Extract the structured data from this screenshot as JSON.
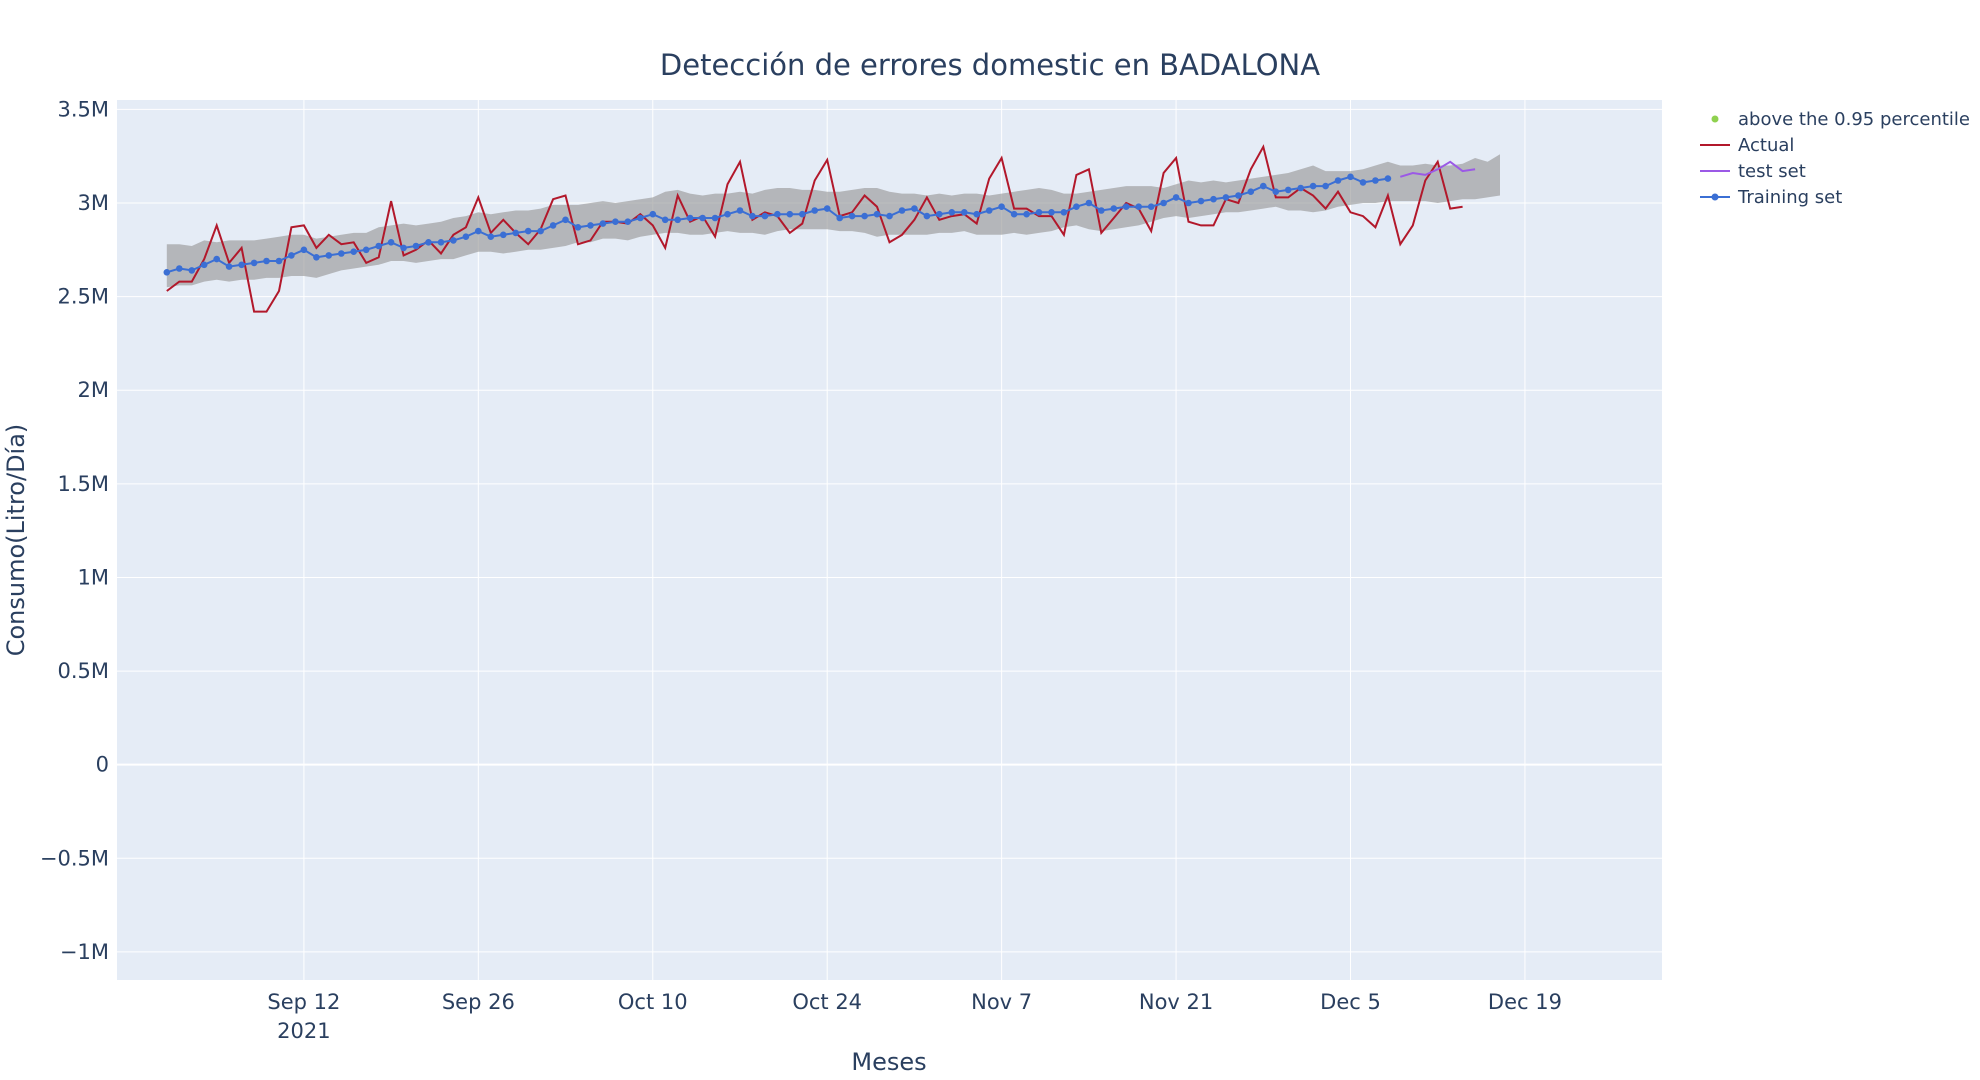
{
  "chart_data": {
    "type": "line",
    "title": "Detección de errores domestic en BADALONA",
    "xlabel": "Meses",
    "ylabel": "Consumo(Litro/Día)",
    "x_start": "2021-09-01",
    "x_range": [
      "2021-08-28",
      "2021-12-30"
    ],
    "ylim": [
      -1150000,
      3550000
    ],
    "x_ticks": [
      {
        "date": "2021-09-12",
        "label": "Sep 12",
        "sublabel": "2021"
      },
      {
        "date": "2021-09-26",
        "label": "Sep 26",
        "sublabel": ""
      },
      {
        "date": "2021-10-10",
        "label": "Oct 10",
        "sublabel": ""
      },
      {
        "date": "2021-10-24",
        "label": "Oct 24",
        "sublabel": ""
      },
      {
        "date": "2021-11-07",
        "label": "Nov 7",
        "sublabel": ""
      },
      {
        "date": "2021-11-21",
        "label": "Nov 21",
        "sublabel": ""
      },
      {
        "date": "2021-12-05",
        "label": "Dec 5",
        "sublabel": ""
      },
      {
        "date": "2021-12-19",
        "label": "Dec 19",
        "sublabel": ""
      }
    ],
    "y_ticks": [
      {
        "value": 3500000,
        "label": "3.5M"
      },
      {
        "value": 3000000,
        "label": "3M"
      },
      {
        "value": 2500000,
        "label": "2.5M"
      },
      {
        "value": 2000000,
        "label": "2M"
      },
      {
        "value": 1500000,
        "label": "1.5M"
      },
      {
        "value": 1000000,
        "label": "1M"
      },
      {
        "value": 500000,
        "label": "0.5M"
      },
      {
        "value": 0,
        "label": "0"
      },
      {
        "value": -500000,
        "label": "−0.5M"
      },
      {
        "value": -1000000,
        "label": "−1M"
      }
    ],
    "legend_position": "top-right",
    "grid": true,
    "colors": {
      "plot_bg": "#e5ecf6",
      "grid": "#ffffff",
      "band": "#9a9a9a",
      "actual": "#b2182b",
      "test": "#9b59e6",
      "training": "#3b6fd4",
      "outlier": "#8fd14f",
      "text": "#2a3f5f"
    },
    "legend": [
      {
        "key": "outlier",
        "label": "above the 0.95 percentile",
        "style": "marker"
      },
      {
        "key": "actual",
        "label": "Actual",
        "style": "line"
      },
      {
        "key": "test",
        "label": "test set",
        "style": "line"
      },
      {
        "key": "training",
        "label": "Training set",
        "style": "line-marker"
      }
    ],
    "band_upper": [
      2780000,
      2780000,
      2770000,
      2800000,
      2790000,
      2800000,
      2800000,
      2800000,
      2810000,
      2820000,
      2830000,
      2830000,
      2810000,
      2820000,
      2830000,
      2840000,
      2840000,
      2870000,
      2880000,
      2890000,
      2880000,
      2890000,
      2900000,
      2920000,
      2930000,
      2950000,
      2940000,
      2950000,
      2960000,
      2960000,
      2970000,
      2990000,
      2990000,
      2990000,
      3000000,
      3010000,
      3000000,
      3010000,
      3020000,
      3030000,
      3060000,
      3070000,
      3050000,
      3040000,
      3050000,
      3050000,
      3060000,
      3050000,
      3070000,
      3080000,
      3080000,
      3070000,
      3070000,
      3060000,
      3060000,
      3070000,
      3080000,
      3080000,
      3060000,
      3050000,
      3050000,
      3040000,
      3050000,
      3040000,
      3050000,
      3050000,
      3040000,
      3050000,
      3060000,
      3070000,
      3080000,
      3070000,
      3050000,
      3050000,
      3060000,
      3070000,
      3080000,
      3090000,
      3090000,
      3090000,
      3080000,
      3100000,
      3120000,
      3110000,
      3120000,
      3110000,
      3120000,
      3130000,
      3140000,
      3150000,
      3160000,
      3180000,
      3200000,
      3170000,
      3170000,
      3170000,
      3180000,
      3200000,
      3220000,
      3200000,
      3200000,
      3210000,
      3200000,
      3200000,
      3210000,
      3240000,
      3220000,
      3260000
    ],
    "band_lower": [
      2550000,
      2560000,
      2560000,
      2580000,
      2590000,
      2580000,
      2590000,
      2590000,
      2600000,
      2600000,
      2610000,
      2610000,
      2600000,
      2620000,
      2640000,
      2650000,
      2660000,
      2670000,
      2690000,
      2690000,
      2680000,
      2690000,
      2700000,
      2700000,
      2720000,
      2740000,
      2740000,
      2730000,
      2740000,
      2750000,
      2750000,
      2760000,
      2770000,
      2790000,
      2790000,
      2810000,
      2810000,
      2800000,
      2820000,
      2830000,
      2840000,
      2840000,
      2830000,
      2830000,
      2840000,
      2850000,
      2840000,
      2840000,
      2830000,
      2850000,
      2860000,
      2860000,
      2860000,
      2860000,
      2850000,
      2850000,
      2840000,
      2820000,
      2830000,
      2830000,
      2830000,
      2830000,
      2840000,
      2840000,
      2850000,
      2830000,
      2830000,
      2830000,
      2840000,
      2830000,
      2840000,
      2850000,
      2870000,
      2880000,
      2860000,
      2850000,
      2860000,
      2870000,
      2880000,
      2900000,
      2920000,
      2930000,
      2920000,
      2930000,
      2940000,
      2950000,
      2950000,
      2960000,
      2970000,
      2980000,
      2960000,
      2960000,
      2950000,
      2960000,
      2980000,
      2990000,
      3000000,
      3000000,
      3010000,
      3010000,
      3010000,
      3010000,
      3000000,
      3010000,
      3020000,
      3020000,
      3030000,
      3040000
    ],
    "training": [
      2630000,
      2650000,
      2640000,
      2670000,
      2700000,
      2660000,
      2670000,
      2680000,
      2690000,
      2690000,
      2720000,
      2750000,
      2710000,
      2720000,
      2730000,
      2740000,
      2750000,
      2770000,
      2790000,
      2760000,
      2770000,
      2790000,
      2790000,
      2800000,
      2820000,
      2850000,
      2820000,
      2830000,
      2840000,
      2850000,
      2850000,
      2880000,
      2910000,
      2870000,
      2880000,
      2890000,
      2900000,
      2900000,
      2920000,
      2940000,
      2910000,
      2910000,
      2920000,
      2920000,
      2920000,
      2940000,
      2960000,
      2930000,
      2930000,
      2940000,
      2940000,
      2940000,
      2960000,
      2970000,
      2920000,
      2930000,
      2930000,
      2940000,
      2930000,
      2960000,
      2970000,
      2930000,
      2940000,
      2950000,
      2950000,
      2940000,
      2960000,
      2980000,
      2940000,
      2940000,
      2950000,
      2950000,
      2950000,
      2980000,
      3000000,
      2960000,
      2970000,
      2980000,
      2980000,
      2980000,
      3000000,
      3030000,
      3000000,
      3010000,
      3020000,
      3030000,
      3040000,
      3060000,
      3090000,
      3060000,
      3070000,
      3080000,
      3090000,
      3090000,
      3120000,
      3140000,
      3110000,
      3120000,
      3130000
    ],
    "test_start": "2021-12-09",
    "test": [
      3140000,
      3160000,
      3150000,
      3180000,
      3220000,
      3170000,
      3180000
    ],
    "actual": [
      2530000,
      2580000,
      2580000,
      2700000,
      2880000,
      2680000,
      2760000,
      2420000,
      2420000,
      2530000,
      2870000,
      2880000,
      2760000,
      2830000,
      2780000,
      2790000,
      2680000,
      2710000,
      3010000,
      2720000,
      2750000,
      2800000,
      2730000,
      2830000,
      2870000,
      3030000,
      2840000,
      2910000,
      2840000,
      2780000,
      2860000,
      3020000,
      3040000,
      2780000,
      2800000,
      2900000,
      2900000,
      2890000,
      2940000,
      2880000,
      2760000,
      3040000,
      2900000,
      2930000,
      2820000,
      3100000,
      3220000,
      2910000,
      2950000,
      2930000,
      2840000,
      2890000,
      3120000,
      3230000,
      2930000,
      2950000,
      3040000,
      2980000,
      2790000,
      2830000,
      2910000,
      3030000,
      2910000,
      2930000,
      2940000,
      2890000,
      3130000,
      3240000,
      2970000,
      2970000,
      2930000,
      2930000,
      2830000,
      3150000,
      3180000,
      2840000,
      2920000,
      3000000,
      2970000,
      2850000,
      3160000,
      3240000,
      2900000,
      2880000,
      2880000,
      3020000,
      3000000,
      3180000,
      3300000,
      3030000,
      3030000,
      3080000,
      3040000,
      2970000,
      3060000,
      2950000,
      2930000,
      2870000,
      3040000,
      2780000,
      2880000,
      3120000,
      3220000,
      2970000,
      2980000
    ]
  }
}
